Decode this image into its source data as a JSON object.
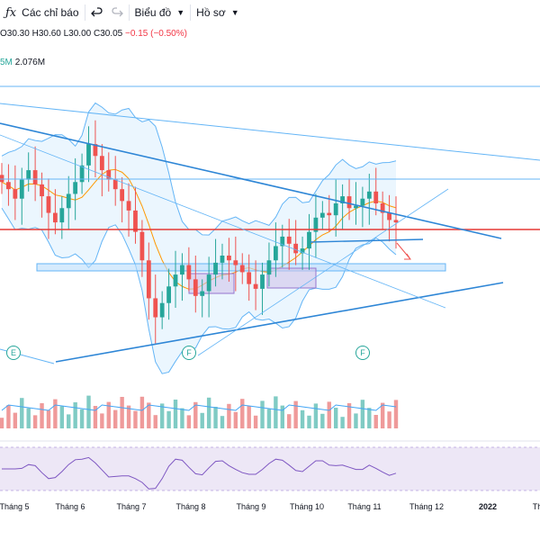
{
  "toolbar": {
    "indicators_label": "Các chỉ báo",
    "chart_label": "Biểu đồ",
    "profile_label": "Hồ sơ"
  },
  "legend": {
    "open": "O30.30",
    "high": "H30.60",
    "low": "L30.00",
    "close": "C30.05",
    "change": "−0.15 (−0.50%)",
    "volume_prefix": "5M",
    "volume_value": "2.076M"
  },
  "markers": [
    {
      "label": "E"
    },
    {
      "label": "F"
    },
    {
      "label": "F"
    }
  ],
  "xaxis": [
    {
      "label": "Tháng 5"
    },
    {
      "label": "Tháng 6"
    },
    {
      "label": "Tháng 7"
    },
    {
      "label": "Tháng 8"
    },
    {
      "label": "Tháng 9"
    },
    {
      "label": "Tháng 10"
    },
    {
      "label": "Tháng 11"
    },
    {
      "label": "Tháng 12"
    },
    {
      "label": "2022",
      "bold": true
    },
    {
      "label": "Th"
    }
  ],
  "colors": {
    "up": "#26a69a",
    "down": "#ef5350",
    "trend": "#2e86d6",
    "bb_fill": "#e3f2fd",
    "rsi_band": "#ede7f6",
    "rsi_line": "#7e57c2",
    "hline": "#e53935"
  },
  "chart_data": {
    "type": "candlestick",
    "months": [
      "Tháng 5",
      "Tháng 6",
      "Tháng 7",
      "Tháng 8",
      "Tháng 9",
      "Tháng 10",
      "Tháng 11",
      "Tháng 12",
      "2022",
      "Th"
    ],
    "series": [
      {
        "values": [
          33.5,
          33.2,
          32.8,
          33.6,
          34.0,
          33.4,
          32.9,
          32.2,
          31.8,
          32.4,
          33.0,
          33.5,
          34.2,
          35.1,
          34.6,
          34.0,
          33.6,
          33.2,
          32.7,
          32.3,
          31.4,
          30.2,
          28.6,
          27.8,
          28.4,
          29.1,
          29.6,
          30.0,
          29.4,
          28.7,
          28.9,
          29.6,
          30.1,
          30.4,
          30.2,
          30.0,
          29.7,
          29.2,
          29.0,
          29.6,
          30.2,
          30.8,
          31.2,
          30.9,
          30.5,
          30.7,
          31.4,
          32.0,
          32.2,
          32.1,
          32.6,
          32.9,
          32.4,
          32.5,
          32.8,
          33.1,
          32.6,
          32.2,
          31.9,
          31.8
        ]
      }
    ]
  }
}
